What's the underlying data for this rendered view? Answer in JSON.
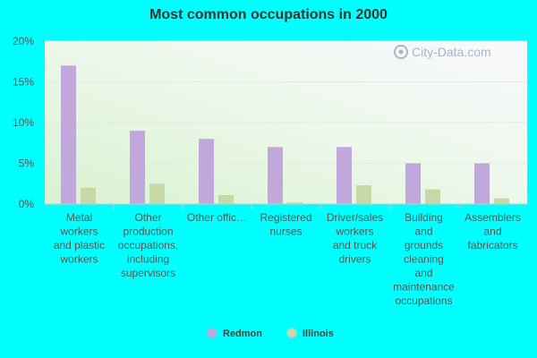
{
  "chart_data": {
    "type": "bar",
    "title": "Most common occupations in 2000",
    "categories": [
      "Metal workers and plastic workers",
      "Other production occupations, including supervisors",
      "Other offic…",
      "Registered nurses",
      "Driver/sales workers and truck drivers",
      "Building and grounds cleaning and maintenance occupations",
      "Assemblers and fabricators"
    ],
    "category_lines": [
      [
        "Metal",
        "workers",
        "and plastic",
        "workers"
      ],
      [
        "Other",
        "production",
        "occupations,",
        "including",
        "supervisors"
      ],
      [
        "Other offic…"
      ],
      [
        "Registered",
        "nurses"
      ],
      [
        "Driver/sales",
        "workers",
        "and truck",
        "drivers"
      ],
      [
        "Building",
        "and",
        "grounds",
        "cleaning",
        "and",
        "maintenance",
        "occupations"
      ],
      [
        "Assemblers",
        "and",
        "fabricators"
      ]
    ],
    "series": [
      {
        "name": "Redmon",
        "color": "#c0a8dc",
        "values": [
          17.0,
          9.0,
          8.0,
          7.0,
          7.0,
          5.0,
          5.0
        ]
      },
      {
        "name": "Illinois",
        "color": "#c6d8a6",
        "values": [
          2.0,
          2.5,
          1.1,
          0.2,
          2.3,
          1.8,
          0.7
        ]
      }
    ],
    "y_ticks": [
      "0%",
      "5%",
      "10%",
      "15%",
      "20%"
    ],
    "ylim": [
      0,
      20
    ],
    "grid": true,
    "legend_position": "bottom-center",
    "watermark": "City-Data.com"
  }
}
